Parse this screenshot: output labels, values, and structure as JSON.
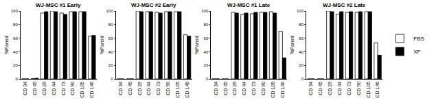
{
  "chart_data": [
    {
      "type": "bar",
      "title": "WJ-MSC #1 Early",
      "y_label": "%Parent",
      "categories": [
        "CD 34",
        "CD 45",
        "CD 29",
        "CD 44",
        "CD 73",
        "CD 90",
        "CD 105",
        "CD 146"
      ],
      "series": [
        {
          "name": "FBS",
          "color": "#ffffff",
          "values": [
            0,
            0.5,
            97,
            100,
            97,
            99,
            99,
            63
          ]
        },
        {
          "name": "XF",
          "color": "#000000",
          "values": [
            0,
            1,
            99,
            99,
            95,
            99,
            99,
            64
          ]
        }
      ],
      "ylim": [
        0,
        100
      ],
      "yticks": [
        0,
        20,
        40,
        60,
        80,
        100
      ],
      "grid": false
    },
    {
      "type": "bar",
      "title": "WJ-MSC #2 Early",
      "y_label": "%Parent",
      "categories": [
        "CD 34",
        "CD 45",
        "CD 29",
        "CD 44",
        "CD 73",
        "CD 90",
        "CD 105",
        "CD 146"
      ],
      "series": [
        {
          "name": "FBS",
          "color": "#ffffff",
          "values": [
            0,
            0,
            100,
            99,
            98,
            99,
            99,
            65
          ]
        },
        {
          "name": "XF",
          "color": "#000000",
          "values": [
            0,
            0,
            99,
            99,
            97,
            99,
            99,
            63
          ]
        }
      ],
      "ylim": [
        0,
        100
      ],
      "yticks": [
        0,
        20,
        40,
        60,
        80,
        100
      ],
      "grid": false
    },
    {
      "type": "bar",
      "title": "WJ-MSC #1 Late",
      "y_label": "%Parent",
      "categories": [
        "CD 34",
        "CD 45",
        "CD 29",
        "CD 44",
        "CD 73",
        "CD 90",
        "CD 105",
        "CD 146"
      ],
      "series": [
        {
          "name": "FBS",
          "color": "#ffffff",
          "values": [
            0,
            0,
            98,
            95,
            96,
            98,
            99,
            70
          ]
        },
        {
          "name": "XF",
          "color": "#000000",
          "values": [
            0,
            0,
            97,
            97,
            98,
            98,
            97,
            31
          ]
        }
      ],
      "ylim": [
        0,
        100
      ],
      "yticks": [
        0,
        20,
        40,
        60,
        80,
        100
      ],
      "grid": false
    },
    {
      "type": "bar",
      "title": "WJ-MSC #2 Late",
      "y_label": "%Parent",
      "categories": [
        "CD 34",
        "CD 45",
        "CD 29",
        "CD 44",
        "CD 73",
        "CD 90",
        "CD 105",
        "CD 146"
      ],
      "series": [
        {
          "name": "FBS",
          "color": "#ffffff",
          "values": [
            0,
            0,
            100,
            95,
            98,
            98,
            99,
            53
          ]
        },
        {
          "name": "XF",
          "color": "#000000",
          "values": [
            0,
            0,
            99,
            99,
            99,
            99,
            99,
            35
          ]
        }
      ],
      "ylim": [
        0,
        100
      ],
      "yticks": [
        0,
        20,
        40,
        60,
        80,
        100
      ],
      "grid": false,
      "legend": "right"
    }
  ]
}
